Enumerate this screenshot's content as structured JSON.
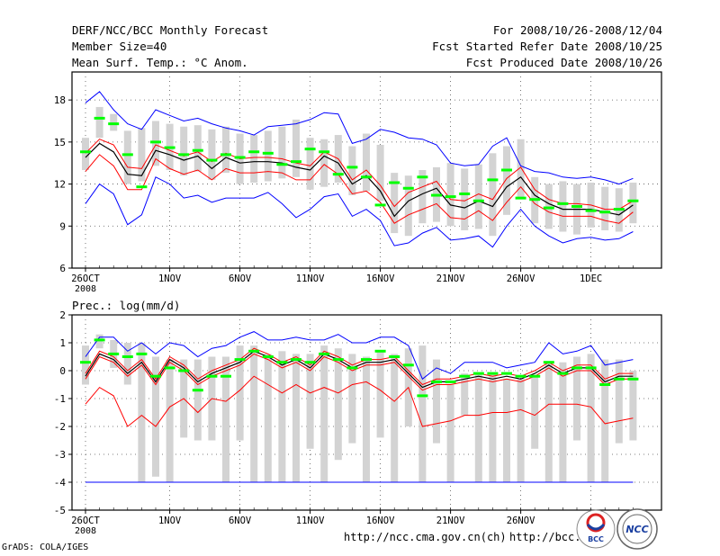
{
  "header": {
    "left": [
      "DERF/NCC/BCC Monthly Forecast",
      "Member Size=40",
      "Mean Surf. Temp.: °C Anom."
    ],
    "right": [
      "For 2008/10/26-2008/12/04",
      "Fcst Started Refer Date 2008/10/25",
      "Fcst Produced Date 2008/10/26"
    ]
  },
  "footer": {
    "grads": "GrADS: COLA/IGES",
    "url1": "http://ncc.cma.gov.cn(ch)",
    "url2": "http://bcc.",
    "logo1": "BCC",
    "logo2": "NCC"
  },
  "colors": {
    "ens_bar": "#d3d3d3",
    "median": "#00ff00",
    "envelope": "#0000ff",
    "spread": "#ff0000",
    "mean": "#000000"
  },
  "chart_data": [
    {
      "type": "box",
      "title": "Mean Surf. Temp.: °C Anom.",
      "ylim": [
        6,
        20
      ],
      "yticks": [
        6,
        9,
        12,
        15,
        18
      ],
      "xtick_labels": [
        {
          "day": 0,
          "label": "26OCT",
          "sub": "2008"
        },
        {
          "day": 6,
          "label": "1NOV"
        },
        {
          "day": 11,
          "label": "6NOV"
        },
        {
          "day": 16,
          "label": "11NOV"
        },
        {
          "day": 21,
          "label": "16NOV"
        },
        {
          "day": 26,
          "label": "21NOV"
        },
        {
          "day": 31,
          "label": "26NOV"
        },
        {
          "day": 36,
          "label": "1DEC"
        }
      ],
      "days": 40,
      "box_low": [
        13.0,
        15.3,
        15.8,
        12.0,
        12.2,
        13.3,
        13.0,
        12.6,
        12.9,
        12.3,
        12.8,
        12.0,
        12.1,
        12.2,
        12.4,
        12.5,
        11.6,
        11.8,
        12.1,
        11.2,
        11.5,
        10.8,
        8.5,
        8.3,
        9.2,
        9.3,
        9.0,
        8.7,
        8.8,
        8.3,
        9.8,
        11.0,
        9.2,
        8.8,
        8.6,
        8.4,
        8.9,
        8.7,
        8.6,
        9.2
      ],
      "box_high": [
        15.3,
        17.5,
        17.0,
        15.8,
        16.0,
        16.5,
        16.3,
        16.1,
        16.2,
        15.9,
        16.1,
        15.6,
        15.5,
        15.8,
        16.1,
        16.6,
        15.3,
        15.2,
        15.5,
        14.7,
        15.6,
        14.8,
        12.8,
        12.6,
        13.0,
        13.2,
        13.5,
        13.1,
        13.4,
        14.2,
        14.7,
        15.2,
        12.5,
        12.0,
        12.2,
        12.0,
        12.1,
        11.8,
        11.7,
        12.1
      ],
      "median": [
        14.3,
        16.7,
        16.3,
        14.1,
        11.8,
        15.0,
        14.6,
        14.1,
        14.4,
        13.7,
        14.1,
        13.9,
        14.3,
        14.2,
        13.4,
        13.6,
        14.5,
        14.3,
        12.7,
        13.2,
        12.5,
        10.5,
        12.1,
        11.7,
        12.5,
        11.2,
        11.1,
        11.3,
        10.8,
        12.3,
        13.0,
        11.0,
        10.9,
        10.3,
        10.6,
        10.4,
        10.1,
        10.0,
        10.2,
        10.8
      ],
      "mean": [
        13.9,
        14.9,
        14.3,
        12.7,
        12.6,
        14.4,
        14.1,
        13.7,
        14.0,
        13.1,
        13.9,
        13.5,
        13.6,
        13.6,
        13.5,
        13.2,
        13.0,
        14.0,
        13.5,
        12.0,
        12.6,
        11.5,
        9.7,
        10.8,
        11.3,
        11.7,
        10.5,
        10.3,
        10.8,
        10.4,
        11.8,
        12.5,
        11.2,
        10.6,
        10.2,
        10.2,
        10.2,
        10.0,
        9.8,
        10.5
      ],
      "spread_upper": [
        14.2,
        15.2,
        14.8,
        13.2,
        13.1,
        14.8,
        14.4,
        14.0,
        14.3,
        13.6,
        14.2,
        13.8,
        13.9,
        13.9,
        13.8,
        13.5,
        13.3,
        14.3,
        13.8,
        12.3,
        13.0,
        11.9,
        10.4,
        11.4,
        11.8,
        12.2,
        10.9,
        10.8,
        11.3,
        10.9,
        12.4,
        13.2,
        11.6,
        10.9,
        10.6,
        10.6,
        10.5,
        10.2,
        10.2,
        10.8
      ],
      "spread_lower": [
        12.9,
        14.1,
        13.3,
        11.6,
        11.6,
        13.8,
        13.1,
        12.7,
        13.0,
        12.3,
        13.1,
        12.8,
        12.8,
        12.9,
        12.8,
        12.3,
        12.3,
        13.4,
        12.7,
        11.3,
        11.5,
        10.7,
        9.2,
        9.8,
        10.2,
        10.6,
        9.6,
        9.5,
        10.1,
        9.4,
        10.7,
        11.8,
        10.6,
        10.0,
        9.7,
        9.7,
        9.7,
        9.4,
        9.2,
        10.0
      ],
      "envelope_upper": [
        17.8,
        18.6,
        17.3,
        16.3,
        15.9,
        17.3,
        16.9,
        16.5,
        16.7,
        16.3,
        16.0,
        15.8,
        15.5,
        16.1,
        16.2,
        16.3,
        16.6,
        17.1,
        17.0,
        14.9,
        15.2,
        15.9,
        15.7,
        15.3,
        15.2,
        14.8,
        13.5,
        13.3,
        13.4,
        14.7,
        15.3,
        13.3,
        12.9,
        12.8,
        12.5,
        12.4,
        12.5,
        12.3,
        12.0,
        12.4
      ],
      "envelope_lower": [
        10.6,
        12.0,
        11.3,
        9.1,
        9.8,
        12.5,
        12.0,
        11.0,
        11.2,
        10.7,
        11.0,
        11.0,
        11.0,
        11.4,
        10.6,
        9.6,
        10.2,
        11.1,
        11.3,
        9.7,
        10.2,
        9.4,
        7.6,
        7.8,
        8.5,
        8.9,
        8.0,
        8.1,
        8.3,
        7.5,
        9.0,
        10.2,
        9.0,
        8.3,
        7.8,
        8.1,
        8.2,
        8.0,
        8.1,
        8.6
      ]
    },
    {
      "type": "box",
      "title": "Prec.: log(mm/d)",
      "ylim": [
        -5,
        2
      ],
      "yticks": [
        -5,
        -4,
        -3,
        -2,
        -1,
        0,
        1,
        2
      ],
      "xtick_labels": [
        {
          "day": 0,
          "label": "26OCT",
          "sub": "2008"
        },
        {
          "day": 6,
          "label": "1NOV"
        },
        {
          "day": 11,
          "label": "6NOV"
        },
        {
          "day": 16,
          "label": "11NOV"
        },
        {
          "day": 21,
          "label": "16NOV"
        },
        {
          "day": 26,
          "label": "21NOV"
        },
        {
          "day": 31,
          "label": "26NOV"
        },
        {
          "day": 36,
          "label": "1DEC"
        }
      ],
      "days": 40,
      "box_low": [
        -0.5,
        0.8,
        0.1,
        -0.5,
        -4.0,
        -3.8,
        -4.0,
        -2.4,
        -2.5,
        -2.5,
        -4.0,
        -2.5,
        -4.0,
        -4.0,
        -4.0,
        -4.0,
        -2.8,
        -4.0,
        -3.2,
        -2.6,
        -4.0,
        -2.4,
        -4.0,
        -2.0,
        -4.0,
        -2.6,
        -4.0,
        -1.6,
        -4.0,
        -4.0,
        -4.0,
        -4.0,
        -2.8,
        -4.0,
        -4.0,
        -2.5,
        -4.0,
        -4.0,
        -2.6,
        -2.5
      ],
      "box_high": [
        0.9,
        1.3,
        1.1,
        1.0,
        1.0,
        0.5,
        0.4,
        0.4,
        0.4,
        0.5,
        0.5,
        0.9,
        0.9,
        0.6,
        0.7,
        0.6,
        0.6,
        0.9,
        0.8,
        0.6,
        0.5,
        0.7,
        0.6,
        0.8,
        0.9,
        0.4,
        -0.5,
        -0.1,
        -0.1,
        -0.1,
        -0.3,
        -0.3,
        -0.2,
        0.3,
        0.3,
        0.5,
        0.6,
        0.4,
        0.4,
        0.0
      ],
      "median": [
        0.3,
        1.1,
        0.6,
        0.5,
        0.6,
        -0.2,
        0.1,
        0.0,
        -0.7,
        -0.2,
        -0.2,
        0.4,
        0.7,
        0.5,
        0.3,
        0.4,
        0.3,
        0.6,
        0.4,
        0.1,
        0.4,
        0.7,
        0.5,
        0.2,
        -0.9,
        -0.4,
        -0.4,
        -0.2,
        -0.1,
        -0.1,
        -0.1,
        -0.2,
        -0.2,
        0.3,
        -0.1,
        0.1,
        0.1,
        -0.5,
        -0.3,
        -0.3
      ],
      "mean": [
        -0.2,
        0.6,
        0.4,
        -0.1,
        0.3,
        -0.4,
        0.4,
        0.1,
        -0.4,
        -0.1,
        0.1,
        0.3,
        0.7,
        0.5,
        0.2,
        0.4,
        0.1,
        0.6,
        0.4,
        0.1,
        0.3,
        0.3,
        0.4,
        -0.1,
        -0.6,
        -0.4,
        -0.4,
        -0.3,
        -0.2,
        -0.3,
        -0.2,
        -0.3,
        -0.1,
        0.2,
        -0.1,
        0.1,
        0.1,
        -0.4,
        -0.2,
        -0.2
      ],
      "spread_upper": [
        -0.1,
        0.7,
        0.5,
        0.0,
        0.4,
        -0.3,
        0.5,
        0.2,
        -0.3,
        0.0,
        0.2,
        0.4,
        0.8,
        0.6,
        0.3,
        0.5,
        0.2,
        0.7,
        0.5,
        0.2,
        0.4,
        0.4,
        0.5,
        0.0,
        -0.5,
        -0.3,
        -0.3,
        -0.2,
        -0.1,
        -0.2,
        -0.1,
        -0.2,
        0.0,
        0.3,
        0.0,
        0.2,
        0.2,
        -0.3,
        -0.1,
        -0.1
      ],
      "spread_lower": [
        -0.3,
        0.5,
        0.3,
        -0.2,
        0.2,
        -0.5,
        0.3,
        0.0,
        -0.5,
        -0.2,
        0.0,
        0.2,
        0.6,
        0.4,
        0.1,
        0.3,
        0.0,
        0.5,
        0.3,
        0.0,
        0.2,
        0.2,
        0.3,
        -0.2,
        -0.7,
        -0.5,
        -0.5,
        -0.4,
        -0.3,
        -0.4,
        -0.3,
        -0.4,
        -0.2,
        0.1,
        -0.2,
        0.0,
        0.0,
        -0.5,
        -0.3,
        -0.3
      ],
      "lower_red": [
        -1.2,
        -0.6,
        -0.9,
        -2.0,
        -1.6,
        -2.0,
        -1.3,
        -1.0,
        -1.5,
        -1.0,
        -1.1,
        -0.7,
        -0.2,
        -0.5,
        -0.8,
        -0.5,
        -0.8,
        -0.6,
        -0.8,
        -0.5,
        -0.4,
        -0.7,
        -1.1,
        -0.6,
        -2.0,
        -1.9,
        -1.8,
        -1.6,
        -1.6,
        -1.5,
        -1.5,
        -1.4,
        -1.6,
        -1.2,
        -1.2,
        -1.2,
        -1.3,
        -1.9,
        -1.8,
        -1.7
      ],
      "envelope_upper": [
        0.5,
        1.2,
        1.2,
        0.7,
        1.0,
        0.6,
        1.0,
        0.9,
        0.5,
        0.8,
        0.9,
        1.2,
        1.4,
        1.1,
        1.1,
        1.2,
        1.1,
        1.1,
        1.3,
        1.0,
        1.0,
        1.2,
        1.2,
        0.9,
        -0.3,
        0.1,
        -0.1,
        0.3,
        0.3,
        0.3,
        0.1,
        0.2,
        0.3,
        1.0,
        0.6,
        0.7,
        0.9,
        0.2,
        0.3,
        0.4
      ],
      "baseline": -4.0
    }
  ]
}
